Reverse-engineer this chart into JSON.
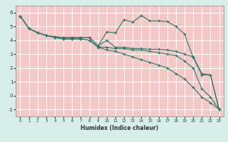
{
  "xlabel": "Humidex (Indice chaleur)",
  "xlim": [
    -0.5,
    23.5
  ],
  "ylim": [
    -1.5,
    6.5
  ],
  "xticks": [
    0,
    1,
    2,
    3,
    4,
    5,
    6,
    7,
    8,
    9,
    10,
    11,
    12,
    13,
    14,
    15,
    16,
    17,
    18,
    19,
    20,
    21,
    22,
    23
  ],
  "yticks": [
    -1,
    0,
    1,
    2,
    3,
    4,
    5,
    6
  ],
  "bg_color": "#d8eee8",
  "plot_bg_color": "#f5c8c8",
  "grid_color": "#ffffff",
  "line_color": "#2a7a6a",
  "line1_x": [
    0,
    1,
    2,
    3,
    4,
    5,
    6,
    7,
    8,
    9,
    10,
    11,
    12,
    13,
    14,
    15,
    16,
    17,
    18,
    19,
    20,
    21,
    22,
    23
  ],
  "line1_y": [
    5.75,
    4.85,
    4.55,
    4.35,
    4.25,
    4.2,
    4.2,
    4.2,
    4.2,
    3.6,
    4.6,
    4.55,
    5.5,
    5.3,
    5.8,
    5.4,
    5.4,
    5.35,
    5.0,
    4.45,
    2.75,
    1.5,
    1.5,
    -1.0
  ],
  "line2_x": [
    0,
    1,
    2,
    3,
    4,
    5,
    6,
    7,
    8,
    9,
    10,
    11,
    12,
    13,
    14,
    15,
    16,
    17,
    18,
    19,
    20,
    21,
    22,
    23
  ],
  "line2_y": [
    5.75,
    4.85,
    4.55,
    4.35,
    4.25,
    4.2,
    4.2,
    4.2,
    4.2,
    3.6,
    4.0,
    3.5,
    3.5,
    3.4,
    3.4,
    3.35,
    3.35,
    3.3,
    3.2,
    3.0,
    2.8,
    1.6,
    1.5,
    -1.0
  ],
  "line3_x": [
    0,
    1,
    2,
    3,
    4,
    5,
    6,
    7,
    8,
    9,
    10,
    11,
    12,
    13,
    14,
    15,
    16,
    17,
    18,
    19,
    20,
    21,
    22,
    23
  ],
  "line3_y": [
    5.75,
    4.85,
    4.55,
    4.35,
    4.2,
    4.1,
    4.1,
    4.1,
    4.0,
    3.5,
    3.5,
    3.4,
    3.4,
    3.3,
    3.3,
    3.2,
    3.1,
    3.0,
    2.9,
    2.5,
    2.0,
    0.5,
    -0.1,
    -1.0
  ],
  "line4_x": [
    0,
    1,
    2,
    3,
    4,
    5,
    6,
    7,
    8,
    9,
    10,
    11,
    12,
    13,
    14,
    15,
    16,
    17,
    18,
    19,
    20,
    21,
    22,
    23
  ],
  "line4_y": [
    5.75,
    4.85,
    4.55,
    4.35,
    4.2,
    4.1,
    4.1,
    4.1,
    4.0,
    3.5,
    3.3,
    3.2,
    3.0,
    2.8,
    2.6,
    2.4,
    2.2,
    2.0,
    1.6,
    1.2,
    0.6,
    -0.1,
    -0.5,
    -1.0
  ]
}
